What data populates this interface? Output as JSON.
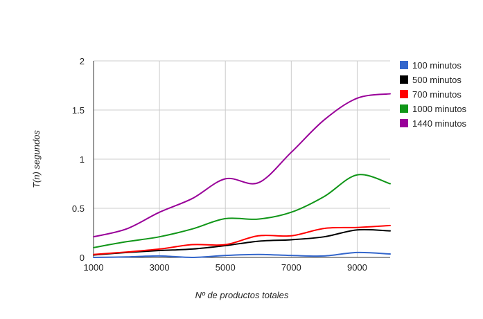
{
  "chart_data": {
    "type": "line",
    "xlabel": "Nº de productos totales",
    "ylabel": "T(n) segundos",
    "xlim": [
      1000,
      10000
    ],
    "ylim": [
      0,
      2
    ],
    "xticks": [
      "1000",
      "3000",
      "5000",
      "7000",
      "9000"
    ],
    "yticks": [
      "0",
      "0.5",
      "1",
      "1.5",
      "2"
    ],
    "x": [
      1000,
      2000,
      3000,
      4000,
      5000,
      6000,
      7000,
      8000,
      9000,
      10000
    ],
    "grid": true,
    "legend_position": "right",
    "series": [
      {
        "name": "100 minutos",
        "color": "#3366cc",
        "values": [
          0.0,
          0.005,
          0.015,
          0.0,
          0.02,
          0.03,
          0.02,
          0.015,
          0.05,
          0.035
        ]
      },
      {
        "name": "500 minutos",
        "color": "#000000",
        "values": [
          0.025,
          0.05,
          0.07,
          0.085,
          0.12,
          0.165,
          0.18,
          0.21,
          0.28,
          0.27
        ]
      },
      {
        "name": "700 minutos",
        "color": "#ff0000",
        "values": [
          0.03,
          0.055,
          0.085,
          0.13,
          0.13,
          0.22,
          0.22,
          0.295,
          0.305,
          0.325
        ]
      },
      {
        "name": "1000 minutos",
        "color": "#109618",
        "values": [
          0.1,
          0.16,
          0.21,
          0.29,
          0.395,
          0.39,
          0.46,
          0.62,
          0.84,
          0.75
        ]
      },
      {
        "name": "1440 minutos",
        "color": "#990099",
        "values": [
          0.21,
          0.29,
          0.46,
          0.6,
          0.8,
          0.76,
          1.07,
          1.4,
          1.62,
          1.665
        ]
      }
    ]
  }
}
